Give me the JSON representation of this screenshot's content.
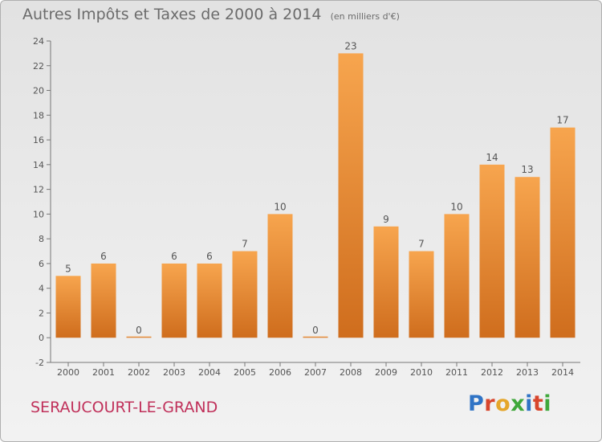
{
  "chart_data": {
    "type": "bar",
    "title": "Autres Impôts et Taxes de 2000 à 2014",
    "subtitle": "(en milliers d'€)",
    "categories": [
      "2000",
      "2001",
      "2002",
      "2003",
      "2004",
      "2005",
      "2006",
      "2007",
      "2008",
      "2009",
      "2010",
      "2011",
      "2012",
      "2013",
      "2014"
    ],
    "values": [
      5,
      6,
      0,
      6,
      6,
      7,
      10,
      0,
      23,
      9,
      7,
      10,
      14,
      13,
      17
    ],
    "ylim": [
      -2,
      24
    ],
    "yticks": [
      -2,
      0,
      2,
      4,
      6,
      8,
      10,
      12,
      14,
      16,
      18,
      20,
      22,
      24
    ],
    "grid": "none",
    "legend": "none",
    "bar_color_light": "#f7a54e",
    "bar_color_dark": "#cf6d1d"
  },
  "footer": {
    "town": "SERAUCOURT-LE-GRAND",
    "town_color": "#c0305a"
  },
  "brand": {
    "letters": [
      "P",
      "r",
      "o",
      "x",
      "i",
      "t",
      "i"
    ],
    "colors": [
      "#2f73c5",
      "#d8452c",
      "#e5a62a",
      "#3fa83b",
      "#2f73c5",
      "#d8452c",
      "#3fa83b"
    ]
  }
}
